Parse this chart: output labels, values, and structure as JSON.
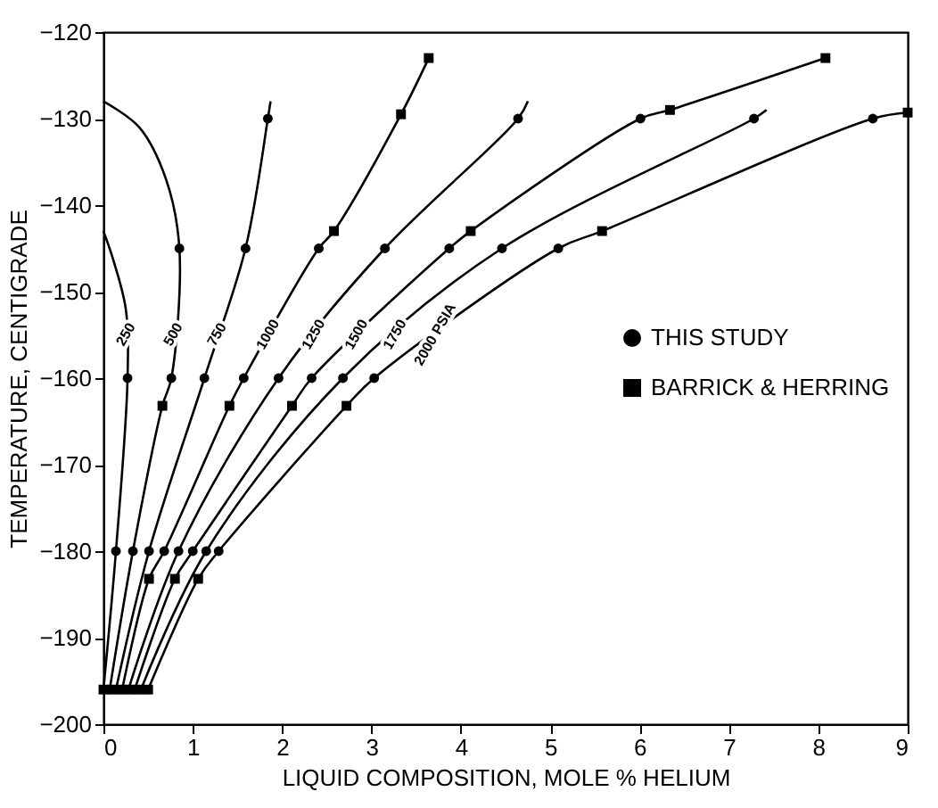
{
  "chart_data": {
    "type": "line",
    "xlabel": "LIQUID COMPOSITION, MOLE % HELIUM",
    "ylabel": "TEMPERATURE, CENTIGRADE",
    "xlim": [
      0,
      9
    ],
    "xticks": [
      0,
      1,
      2,
      3,
      4,
      5,
      6,
      7,
      8,
      9
    ],
    "ylim": [
      -200,
      -120
    ],
    "yticks": [
      -200,
      -190,
      -180,
      -170,
      -160,
      -150,
      -140,
      -130,
      -120
    ],
    "grid": false,
    "legend": "right",
    "series": [
      {
        "type": "line",
        "color": "#000000",
        "marker": "none",
        "x": [
          0,
          0.14,
          0.27,
          0.25,
          0.1,
          0
        ],
        "values": [
          -196,
          -180,
          -160,
          -152,
          -146,
          -143
        ]
      },
      {
        "type": "line",
        "color": "#000000",
        "marker": "none",
        "x": [
          0.07,
          0.33,
          0.66,
          0.76,
          0.85,
          0.7,
          0.4,
          0
        ],
        "values": [
          -196,
          -180,
          -163.2,
          -160,
          -145,
          -137,
          -131,
          -128
        ]
      },
      {
        "type": "line",
        "color": "#000000",
        "marker": "none",
        "x": [
          0.14,
          0.51,
          1.13,
          1.59,
          1.84,
          1.87
        ],
        "values": [
          -196,
          -180,
          -160,
          -145,
          -130,
          -128
        ]
      },
      {
        "type": "line",
        "color": "#000000",
        "marker": "none",
        "x": [
          0.21,
          0.51,
          0.68,
          1.41,
          1.57,
          2.41,
          2.58,
          3.33,
          3.64
        ],
        "values": [
          -196,
          -183.2,
          -180,
          -163.2,
          -160,
          -145,
          -143,
          -129.5,
          -123
        ]
      },
      {
        "type": "line",
        "color": "#000000",
        "marker": "none",
        "x": [
          0.28,
          0.84,
          1.96,
          3.15,
          4.64,
          4.75
        ],
        "values": [
          -196,
          -180,
          -160,
          -145,
          -130,
          -128
        ]
      },
      {
        "type": "line",
        "color": "#000000",
        "marker": "none",
        "x": [
          0.35,
          0.8,
          1.0,
          2.11,
          2.33,
          3.87,
          4.11,
          6.01,
          6.34,
          8.08
        ],
        "values": [
          -196,
          -183.2,
          -180,
          -163.2,
          -160,
          -145,
          -143,
          -130,
          -129,
          -123
        ]
      },
      {
        "type": "line",
        "color": "#000000",
        "marker": "none",
        "x": [
          0.42,
          1.15,
          2.68,
          4.46,
          7.28,
          7.42
        ],
        "values": [
          -196,
          -180,
          -160,
          -145,
          -130,
          -129
        ]
      },
      {
        "type": "line",
        "color": "#000000",
        "marker": "none",
        "x": [
          0.5,
          1.06,
          1.29,
          2.72,
          3.03,
          5.09,
          5.58,
          8.61,
          9.0
        ],
        "values": [
          -196,
          -183.2,
          -180,
          -163.2,
          -160,
          -145,
          -143,
          -130,
          -129.3
        ]
      },
      {
        "type": "scatter",
        "name": "THIS STUDY",
        "color": "#000000",
        "marker": "circle",
        "x": [
          0.14,
          0.33,
          0.51,
          0.68,
          0.84,
          1.0,
          1.15,
          1.29,
          0.27,
          0.76,
          1.13,
          1.57,
          1.96,
          2.33,
          2.68,
          3.03,
          0.85,
          1.59,
          1.84,
          2.41,
          3.15,
          3.87,
          4.46,
          5.09,
          4.64,
          6.01,
          7.28,
          8.61
        ],
        "values": [
          -180,
          -180,
          -180,
          -180,
          -180,
          -180,
          -180,
          -180,
          -160,
          -160,
          -160,
          -160,
          -160,
          -160,
          -160,
          -160,
          -145,
          -145,
          -130,
          -145,
          -145,
          -145,
          -145,
          -145,
          -130,
          -130,
          -130,
          -130
        ]
      },
      {
        "type": "scatter",
        "name": "BARRICK & HERRING",
        "color": "#000000",
        "marker": "square",
        "x": [
          0,
          0.1,
          0.2,
          0.3,
          0.4,
          0.5,
          0.51,
          0.8,
          1.06,
          0.66,
          1.41,
          2.11,
          2.72,
          2.58,
          3.33,
          3.64,
          4.11,
          6.34,
          8.08,
          5.58,
          9.0
        ],
        "values": [
          -196,
          -196,
          -196,
          -196,
          -196,
          -196,
          -183.2,
          -183.2,
          -183.2,
          -163.2,
          -163.2,
          -163.2,
          -163.2,
          -143,
          -129.5,
          -123,
          -143,
          -129,
          -123,
          -143,
          -129.3
        ]
      }
    ],
    "annotations": [
      {
        "text": "250",
        "x": 0.26,
        "y": -155
      },
      {
        "text": "500",
        "x": 0.79,
        "y": -155
      },
      {
        "text": "750",
        "x": 1.28,
        "y": -155
      },
      {
        "text": "1000",
        "x": 1.85,
        "y": -155
      },
      {
        "text": "1250",
        "x": 2.36,
        "y": -155
      },
      {
        "text": "1500",
        "x": 2.84,
        "y": -155
      },
      {
        "text": "1750",
        "x": 3.27,
        "y": -155
      },
      {
        "text": "2000 PSIA",
        "x": 3.72,
        "y": -155
      }
    ]
  }
}
